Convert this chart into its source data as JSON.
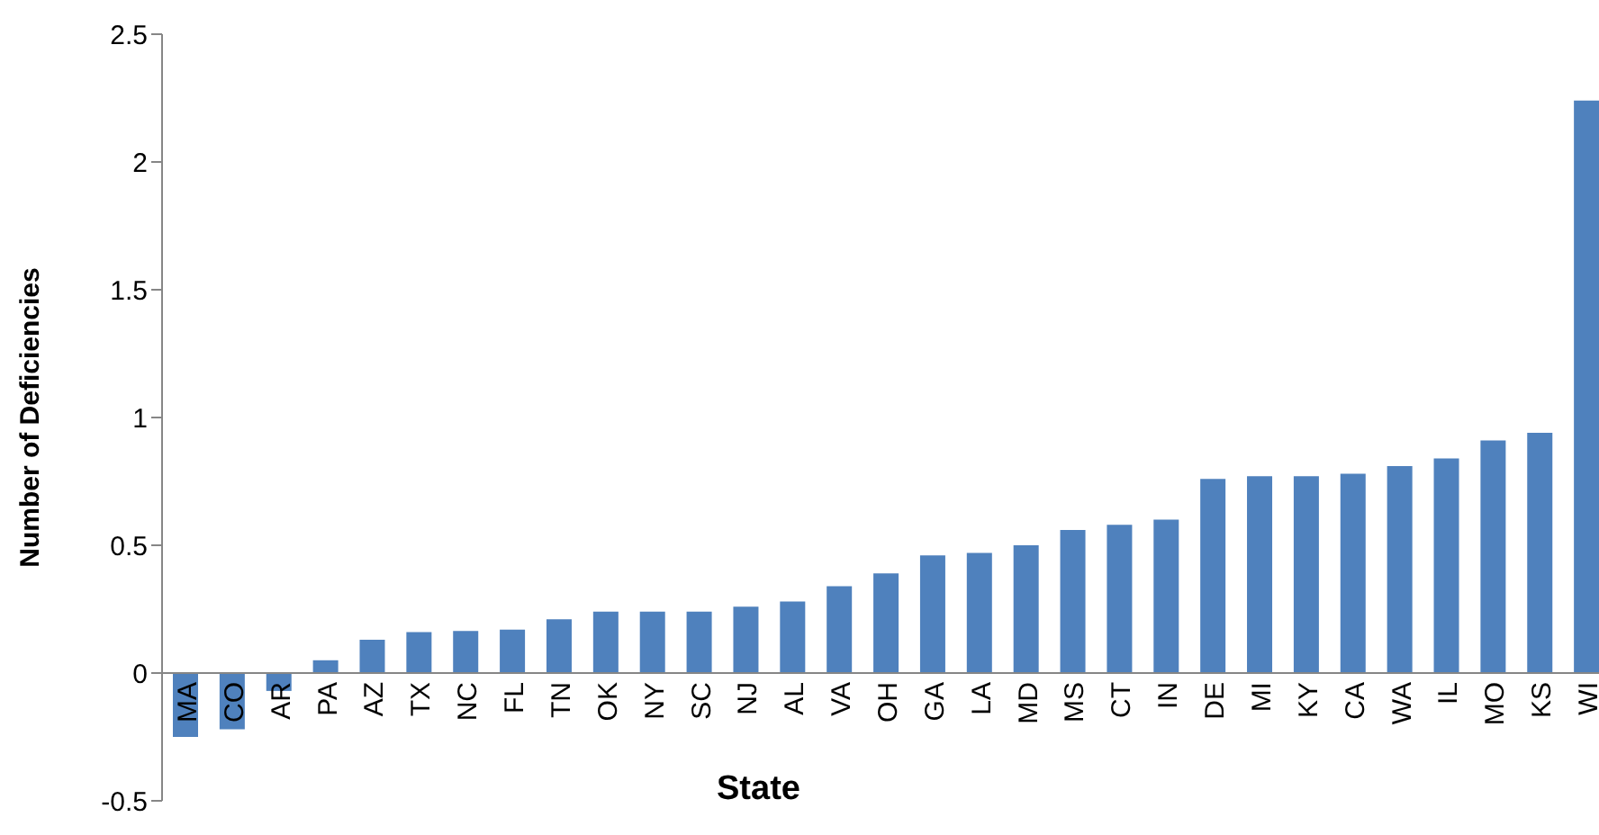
{
  "chart_data": {
    "type": "bar",
    "xlabel": "State",
    "ylabel": "Number of Deficiencies",
    "categories": [
      "MA",
      "CO",
      "AR",
      "PA",
      "AZ",
      "TX",
      "NC",
      "FL",
      "TN",
      "OK",
      "NY",
      "SC",
      "NJ",
      "AL",
      "VA",
      "OH",
      "GA",
      "LA",
      "MD",
      "MS",
      "CT",
      "IN",
      "DE",
      "MI",
      "KY",
      "CA",
      "WA",
      "IL",
      "MO",
      "KS",
      "WI"
    ],
    "values": [
      -0.25,
      -0.22,
      -0.07,
      0.05,
      0.13,
      0.16,
      0.165,
      0.17,
      0.21,
      0.24,
      0.24,
      0.24,
      0.26,
      0.28,
      0.34,
      0.39,
      0.46,
      0.47,
      0.5,
      0.56,
      0.58,
      0.6,
      0.76,
      0.77,
      0.77,
      0.78,
      0.81,
      0.84,
      0.91,
      0.94,
      2.24
    ],
    "color": "#4f81bd",
    "ylim": [
      -0.5,
      2.5
    ],
    "yticks": [
      -0.5,
      0,
      0.5,
      1,
      1.5,
      2,
      2.5
    ],
    "grid": false,
    "legend": false
  }
}
